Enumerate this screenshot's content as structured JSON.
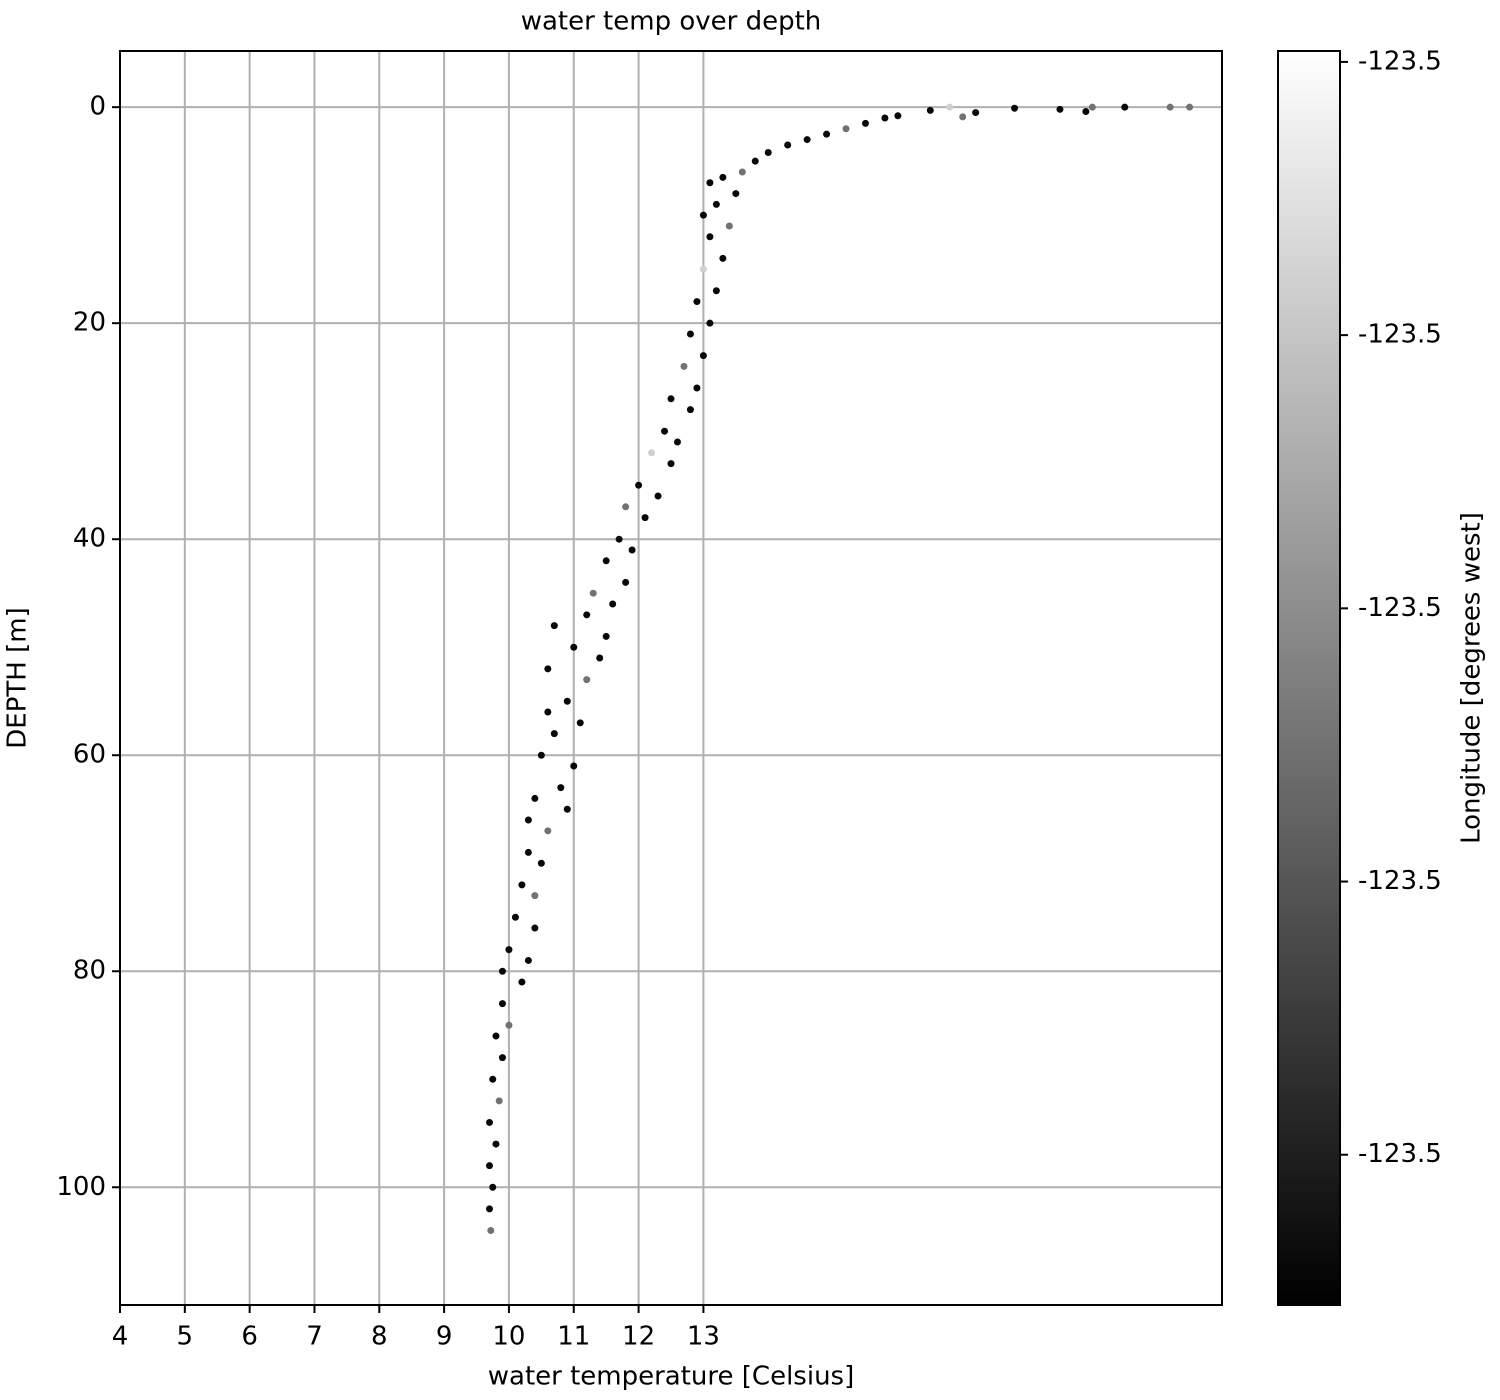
{
  "chart_data": {
    "type": "scatter",
    "title": "water temp over depth",
    "x_label": "water temperature [Celsius]",
    "y_label": "DEPTH [m]",
    "xlim": [
      4,
      21
    ],
    "ylim": [
      110.9,
      -5.2
    ],
    "xticks": [
      4,
      5,
      6,
      7,
      8,
      9,
      10,
      11,
      12,
      13
    ],
    "yticks": [
      0,
      20,
      40,
      60,
      80,
      100
    ],
    "grid": true,
    "colormap": "gray",
    "colorbar": {
      "label": "Longitude [degrees west]",
      "clim": [
        -123.50255,
        -123.49796
      ],
      "ticks": [
        {
          "value": -123.502,
          "label": "-123.5"
        },
        {
          "value": -123.501,
          "label": "-123.5"
        },
        {
          "value": -123.5,
          "label": "-123.5"
        },
        {
          "value": -123.499,
          "label": "-123.5"
        },
        {
          "value": -123.498,
          "label": "-123.5"
        }
      ]
    },
    "x": [
      20.5,
      20.2,
      19.5,
      19.0,
      18.5,
      17.8,
      17.2,
      16.8,
      16.5,
      16.0,
      15.8,
      15.5,
      15.2,
      14.9,
      14.6,
      14.3,
      14.0,
      13.8,
      17.0,
      18.9,
      13.6,
      13.3,
      13.1,
      13.5,
      13.2,
      13.0,
      13.4,
      13.1,
      13.3,
      13.0,
      13.2,
      12.9,
      13.1,
      12.8,
      13.0,
      12.7,
      12.9,
      12.5,
      12.8,
      12.4,
      12.6,
      12.2,
      12.5,
      12.0,
      12.3,
      11.8,
      12.1,
      11.7,
      11.9,
      11.5,
      11.8,
      11.3,
      11.6,
      11.2,
      11.5,
      11.0,
      11.4,
      10.7,
      10.6,
      11.2,
      10.9,
      10.6,
      11.1,
      10.7,
      10.5,
      11.0,
      10.8,
      10.4,
      10.9,
      10.3,
      10.6,
      10.3,
      10.5,
      10.2,
      10.4,
      10.1,
      10.4,
      10.0,
      10.3,
      9.9,
      10.2,
      9.9,
      10.0,
      9.8,
      9.9,
      9.75,
      9.85,
      9.7,
      9.8,
      9.7,
      9.75,
      9.7,
      9.72
    ],
    "y": [
      0,
      0,
      0,
      0,
      0.2,
      0.1,
      0.5,
      0,
      0.3,
      0.8,
      1.0,
      1.5,
      2.0,
      2.5,
      3.0,
      3.5,
      4.2,
      5.0,
      0.9,
      0.4,
      6,
      6.5,
      7,
      8,
      9,
      10,
      11,
      12,
      14,
      15,
      17,
      18,
      20,
      21,
      23,
      24,
      26,
      27,
      28,
      30,
      31,
      32,
      33,
      35,
      36,
      37,
      38,
      40,
      41,
      42,
      44,
      45,
      46,
      47,
      49,
      50,
      51,
      48,
      52,
      53,
      55,
      56,
      57,
      58,
      60,
      61,
      63,
      64,
      65,
      66,
      67,
      69,
      70,
      72,
      73,
      75,
      76,
      78,
      79,
      80,
      81,
      83,
      85,
      86,
      88,
      90,
      92,
      94,
      96,
      98,
      100,
      102,
      104
    ],
    "c": [
      -123.5005,
      -123.5005,
      -123.5024,
      -123.5005,
      -123.5024,
      -123.5024,
      -123.5024,
      -123.4988,
      -123.5024,
      -123.5024,
      -123.5024,
      -123.5024,
      -123.5005,
      -123.5024,
      -123.5024,
      -123.5024,
      -123.5024,
      -123.5024,
      -123.5005,
      -123.5024,
      -123.5005,
      -123.5024,
      -123.5024,
      -123.5024,
      -123.5024,
      -123.5024,
      -123.5005,
      -123.5024,
      -123.5024,
      -123.4988,
      -123.5024,
      -123.5024,
      -123.5024,
      -123.5024,
      -123.5024,
      -123.5005,
      -123.5024,
      -123.5024,
      -123.5024,
      -123.5024,
      -123.5024,
      -123.4988,
      -123.5024,
      -123.5024,
      -123.5024,
      -123.5005,
      -123.5024,
      -123.5024,
      -123.5024,
      -123.5024,
      -123.5024,
      -123.5005,
      -123.5024,
      -123.5024,
      -123.5024,
      -123.5024,
      -123.5024,
      -123.5024,
      -123.5024,
      -123.5005,
      -123.5024,
      -123.5024,
      -123.5024,
      -123.5024,
      -123.5024,
      -123.5024,
      -123.5024,
      -123.5024,
      -123.5024,
      -123.5024,
      -123.5005,
      -123.5024,
      -123.5024,
      -123.5024,
      -123.5005,
      -123.5024,
      -123.5024,
      -123.5024,
      -123.5024,
      -123.5024,
      -123.5024,
      -123.5024,
      -123.5005,
      -123.5024,
      -123.5024,
      -123.5024,
      -123.5005,
      -123.5024,
      -123.5024,
      -123.5024,
      -123.5024,
      -123.5024,
      -123.5005
    ]
  }
}
